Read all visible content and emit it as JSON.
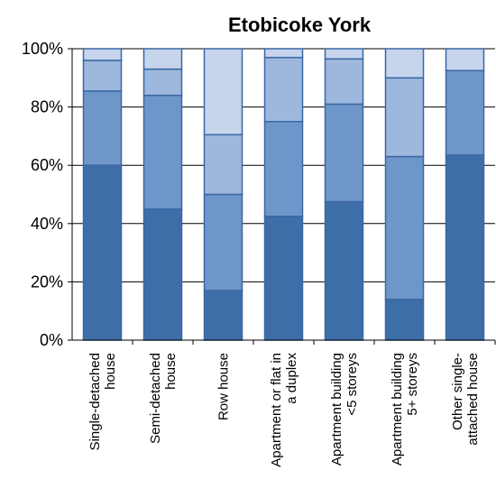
{
  "chart_data": {
    "type": "bar",
    "stacked": true,
    "title": "Etobicoke York",
    "xlabel": "",
    "ylabel": "",
    "ylim": [
      0,
      100
    ],
    "yticks": [
      "0%",
      "20%",
      "40%",
      "60%",
      "80%",
      "100%"
    ],
    "categories": [
      [
        "Single-detached",
        "house"
      ],
      [
        "Semi-detached",
        "house"
      ],
      [
        "Row house"
      ],
      [
        "Apartment or flat in",
        "a duplex"
      ],
      [
        "Apartment building",
        "<5 storeys"
      ],
      [
        "Apartment building",
        "5+ storeys"
      ],
      [
        "Other single-",
        "attached house"
      ]
    ],
    "series": [
      {
        "values": [
          60,
          45,
          17,
          42.5,
          47.5,
          14,
          63.5
        ],
        "color": "#3e6ea8"
      },
      {
        "values": [
          25.5,
          39,
          33,
          32.5,
          33.5,
          49,
          29
        ],
        "color": "#6f96c8"
      },
      {
        "values": [
          10.5,
          9,
          20.5,
          22,
          15.5,
          27,
          0
        ],
        "color": "#9db8dc"
      },
      {
        "values": [
          4,
          7,
          29.5,
          3,
          3.5,
          10,
          7.5
        ],
        "color": "#c6d5ec"
      }
    ],
    "grid": true,
    "legend": "none"
  },
  "colors": {
    "bar_outline": "#3a67a6",
    "gridline": "#000000"
  }
}
